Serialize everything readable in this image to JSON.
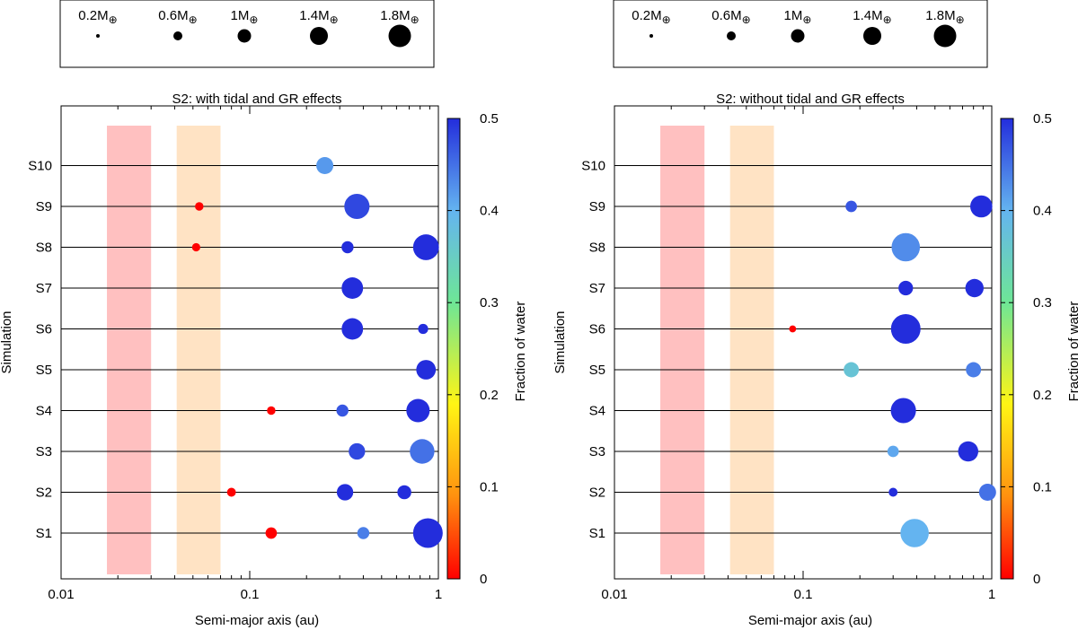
{
  "chart_data": [
    {
      "type": "scatter",
      "title": "S2: with tidal and GR effects",
      "xlabel": "Semi-major axis (au)",
      "ylabel": "Simulation",
      "xscale": "log",
      "xlim": [
        0.01,
        1
      ],
      "x_ticks": [
        "0.01",
        "0.1",
        "1"
      ],
      "categories": [
        "S1",
        "S2",
        "S3",
        "S4",
        "S5",
        "S6",
        "S7",
        "S8",
        "S9",
        "S10"
      ],
      "colorbar": {
        "label": "Fraction of water",
        "range": [
          0,
          0.5
        ],
        "ticks": [
          "0",
          "0.1",
          "0.2",
          "0.3",
          "0.4",
          "0.5"
        ]
      },
      "shaded_regions": [
        {
          "x_range": [
            0.0175,
            0.03
          ],
          "color": "#ffc0c0"
        },
        {
          "x_range": [
            0.041,
            0.07
          ],
          "color": "#ffe3c4"
        }
      ],
      "size_legend": [
        {
          "label_prefix": "0.2M",
          "mass": 0.2
        },
        {
          "label_prefix": "0.6M",
          "mass": 0.6
        },
        {
          "label_prefix": "1M",
          "mass": 1.0
        },
        {
          "label_prefix": "1.4M",
          "mass": 1.4
        },
        {
          "label_prefix": "1.8M",
          "mass": 1.8
        }
      ],
      "mass_symbol": "⊕",
      "series": [
        {
          "name": "S1",
          "planets": [
            {
              "a": 0.13,
              "mass": 0.45,
              "water": 0.0
            },
            {
              "a": 0.4,
              "mass": 0.5,
              "water": 0.44
            },
            {
              "a": 0.88,
              "mass": 1.9,
              "water": 0.5
            }
          ]
        },
        {
          "name": "S2",
          "planets": [
            {
              "a": 0.08,
              "mass": 0.25,
              "water": 0.0
            },
            {
              "a": 0.32,
              "mass": 0.85,
              "water": 0.5
            },
            {
              "a": 0.66,
              "mass": 0.65,
              "water": 0.5
            }
          ]
        },
        {
          "name": "S3",
          "planets": [
            {
              "a": 0.37,
              "mass": 0.85,
              "water": 0.48
            },
            {
              "a": 0.82,
              "mass": 1.5,
              "water": 0.45
            }
          ]
        },
        {
          "name": "S4",
          "planets": [
            {
              "a": 0.13,
              "mass": 0.22,
              "water": 0.0
            },
            {
              "a": 0.31,
              "mass": 0.5,
              "water": 0.47
            },
            {
              "a": 0.78,
              "mass": 1.4,
              "water": 0.5
            }
          ]
        },
        {
          "name": "S5",
          "planets": [
            {
              "a": 0.86,
              "mass": 1.1,
              "water": 0.5
            }
          ]
        },
        {
          "name": "S6",
          "planets": [
            {
              "a": 0.35,
              "mass": 1.25,
              "water": 0.5
            },
            {
              "a": 0.83,
              "mass": 0.35,
              "water": 0.5
            }
          ]
        },
        {
          "name": "S7",
          "planets": [
            {
              "a": 0.35,
              "mass": 1.25,
              "water": 0.5
            }
          ]
        },
        {
          "name": "S8",
          "planets": [
            {
              "a": 0.052,
              "mass": 0.2,
              "water": 0.0
            },
            {
              "a": 0.33,
              "mass": 0.5,
              "water": 0.5
            },
            {
              "a": 0.86,
              "mass": 1.6,
              "water": 0.5
            }
          ]
        },
        {
          "name": "S9",
          "planets": [
            {
              "a": 0.054,
              "mass": 0.22,
              "water": 0.0
            },
            {
              "a": 0.37,
              "mass": 1.55,
              "water": 0.48
            }
          ]
        },
        {
          "name": "S10",
          "planets": [
            {
              "a": 0.25,
              "mass": 0.9,
              "water": 0.42
            }
          ]
        }
      ]
    },
    {
      "type": "scatter",
      "title": "S2: without tidal and GR effects",
      "xlabel": "Semi-major axis (au)",
      "ylabel": "Simulation",
      "xscale": "log",
      "xlim": [
        0.01,
        1
      ],
      "x_ticks": [
        "0.01",
        "0.1",
        "1"
      ],
      "categories": [
        "S1",
        "S2",
        "S3",
        "S4",
        "S5",
        "S6",
        "S7",
        "S8",
        "S9",
        "S10"
      ],
      "colorbar": {
        "label": "Fraction of water",
        "range": [
          0,
          0.5
        ],
        "ticks": [
          "0",
          "0.1",
          "0.2",
          "0.3",
          "0.4",
          "0.5"
        ]
      },
      "shaded_regions": [
        {
          "x_range": [
            0.0175,
            0.03
          ],
          "color": "#ffc0c0"
        },
        {
          "x_range": [
            0.041,
            0.07
          ],
          "color": "#ffe3c4"
        }
      ],
      "size_legend": [
        {
          "label_prefix": "0.2M",
          "mass": 0.2
        },
        {
          "label_prefix": "0.6M",
          "mass": 0.6
        },
        {
          "label_prefix": "1M",
          "mass": 1.0
        },
        {
          "label_prefix": "1.4M",
          "mass": 1.4
        },
        {
          "label_prefix": "1.8M",
          "mass": 1.8
        }
      ],
      "mass_symbol": "⊕",
      "series": [
        {
          "name": "S1",
          "planets": [
            {
              "a": 0.39,
              "mass": 1.8,
              "water": 0.4
            }
          ]
        },
        {
          "name": "S2",
          "planets": [
            {
              "a": 0.3,
              "mass": 0.25,
              "water": 0.5
            },
            {
              "a": 0.95,
              "mass": 0.9,
              "water": 0.45
            }
          ]
        },
        {
          "name": "S3",
          "planets": [
            {
              "a": 0.3,
              "mass": 0.45,
              "water": 0.41
            },
            {
              "a": 0.75,
              "mass": 1.15,
              "water": 0.5
            }
          ]
        },
        {
          "name": "S4",
          "planets": [
            {
              "a": 0.34,
              "mass": 1.55,
              "water": 0.5
            }
          ]
        },
        {
          "name": "S5",
          "planets": [
            {
              "a": 0.18,
              "mass": 0.75,
              "water": 0.37
            },
            {
              "a": 0.8,
              "mass": 0.75,
              "water": 0.44
            }
          ]
        },
        {
          "name": "S6",
          "planets": [
            {
              "a": 0.088,
              "mass": 0.1,
              "water": 0.0
            },
            {
              "a": 0.35,
              "mass": 1.9,
              "water": 0.5
            }
          ]
        },
        {
          "name": "S7",
          "planets": [
            {
              "a": 0.35,
              "mass": 0.7,
              "water": 0.5
            },
            {
              "a": 0.81,
              "mass": 1.0,
              "water": 0.5
            }
          ]
        },
        {
          "name": "S8",
          "planets": [
            {
              "a": 0.35,
              "mass": 1.8,
              "water": 0.43
            }
          ]
        },
        {
          "name": "S9",
          "planets": [
            {
              "a": 0.18,
              "mass": 0.45,
              "water": 0.47
            },
            {
              "a": 0.88,
              "mass": 1.3,
              "water": 0.5
            }
          ]
        },
        {
          "name": "S10",
          "planets": []
        }
      ]
    }
  ]
}
